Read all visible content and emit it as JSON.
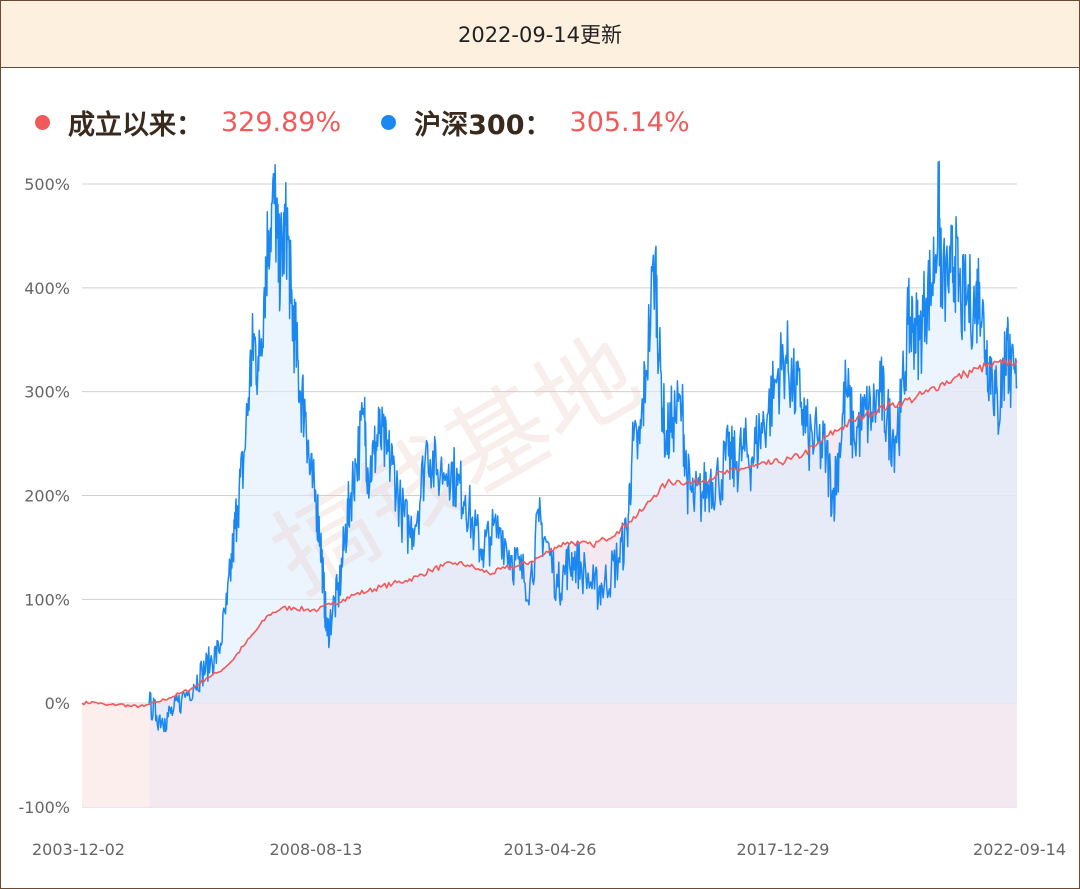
{
  "header": {
    "title": "2022-09-14更新"
  },
  "legend": [
    {
      "name": "成立以来：",
      "value": "329.89%",
      "color": "#f05a5a"
    },
    {
      "name": "沪深300：",
      "value": "305.14%",
      "color": "#1a88f0"
    }
  ],
  "watermark": "搞钱基地",
  "colors": {
    "fund": "#f05a5a",
    "index": "#1a88f0",
    "grid": "#d0d0d0"
  },
  "chart_data": {
    "type": "line",
    "x_tick_labels": [
      "2003-12-02",
      "2008-08-13",
      "2013-04-26",
      "2017-12-29",
      "2022-09-14"
    ],
    "y_tick_labels": [
      "500%",
      "400%",
      "300%",
      "200%",
      "100%",
      "0%",
      "-100%"
    ],
    "ylim": [
      -100,
      500
    ],
    "xlim": [
      "2003-12-02",
      "2022-09-14"
    ],
    "grid": true,
    "series": [
      {
        "name": "成立以来",
        "color": "#f05a5a",
        "points": [
          [
            "2003-12-02",
            0
          ],
          [
            "2004-03-01",
            1
          ],
          [
            "2004-06-01",
            -2
          ],
          [
            "2004-09-01",
            -1
          ],
          [
            "2004-12-01",
            -3
          ],
          [
            "2005-03-01",
            -3
          ],
          [
            "2005-06-01",
            1
          ],
          [
            "2005-09-01",
            5
          ],
          [
            "2005-12-01",
            10
          ],
          [
            "2006-03-01",
            15
          ],
          [
            "2006-06-01",
            24
          ],
          [
            "2006-09-01",
            30
          ],
          [
            "2006-12-01",
            40
          ],
          [
            "2007-03-01",
            55
          ],
          [
            "2007-06-01",
            70
          ],
          [
            "2007-09-01",
            85
          ],
          [
            "2007-12-01",
            91
          ],
          [
            "2008-03-01",
            92
          ],
          [
            "2008-06-01",
            90
          ],
          [
            "2008-09-01",
            90
          ],
          [
            "2008-12-01",
            95
          ],
          [
            "2009-03-01",
            100
          ],
          [
            "2009-06-01",
            105
          ],
          [
            "2009-09-01",
            108
          ],
          [
            "2009-12-01",
            112
          ],
          [
            "2010-03-01",
            115
          ],
          [
            "2010-06-01",
            118
          ],
          [
            "2010-09-01",
            122
          ],
          [
            "2010-12-01",
            128
          ],
          [
            "2011-03-01",
            132
          ],
          [
            "2011-06-01",
            135
          ],
          [
            "2011-09-01",
            133
          ],
          [
            "2011-12-01",
            128
          ],
          [
            "2012-03-01",
            125
          ],
          [
            "2012-06-01",
            130
          ],
          [
            "2012-09-01",
            132
          ],
          [
            "2012-12-01",
            136
          ],
          [
            "2013-03-01",
            142
          ],
          [
            "2013-06-01",
            150
          ],
          [
            "2013-09-01",
            155
          ],
          [
            "2013-12-01",
            154
          ],
          [
            "2014-03-01",
            152
          ],
          [
            "2014-06-01",
            158
          ],
          [
            "2014-09-01",
            165
          ],
          [
            "2014-12-01",
            175
          ],
          [
            "2015-03-01",
            185
          ],
          [
            "2015-06-01",
            200
          ],
          [
            "2015-09-01",
            212
          ],
          [
            "2015-12-01",
            214
          ],
          [
            "2016-03-01",
            212
          ],
          [
            "2016-06-01",
            215
          ],
          [
            "2016-09-01",
            220
          ],
          [
            "2016-12-01",
            222
          ],
          [
            "2017-03-01",
            226
          ],
          [
            "2017-06-01",
            228
          ],
          [
            "2017-09-01",
            230
          ],
          [
            "2017-12-01",
            232
          ],
          [
            "2018-03-01",
            235
          ],
          [
            "2018-06-01",
            240
          ],
          [
            "2018-09-01",
            248
          ],
          [
            "2018-12-01",
            258
          ],
          [
            "2019-03-01",
            265
          ],
          [
            "2019-06-01",
            272
          ],
          [
            "2019-09-01",
            278
          ],
          [
            "2019-12-01",
            283
          ],
          [
            "2020-03-01",
            287
          ],
          [
            "2020-06-01",
            290
          ],
          [
            "2020-09-01",
            294
          ],
          [
            "2020-12-01",
            300
          ],
          [
            "2021-03-01",
            307
          ],
          [
            "2021-06-01",
            312
          ],
          [
            "2021-09-01",
            317
          ],
          [
            "2021-12-01",
            322
          ],
          [
            "2022-03-01",
            325
          ],
          [
            "2022-06-01",
            327
          ],
          [
            "2022-09-14",
            329.89
          ]
        ]
      },
      {
        "name": "沪深300",
        "color": "#1a88f0",
        "start": "2005-04-08",
        "points": [
          [
            "2005-04-08",
            0
          ],
          [
            "2005-06-01",
            -12
          ],
          [
            "2005-08-01",
            -15
          ],
          [
            "2005-10-01",
            -8
          ],
          [
            "2005-12-01",
            3
          ],
          [
            "2006-03-01",
            18
          ],
          [
            "2006-05-01",
            30
          ],
          [
            "2006-07-01",
            40
          ],
          [
            "2006-09-01",
            50
          ],
          [
            "2006-11-01",
            95
          ],
          [
            "2006-12-15",
            150
          ],
          [
            "2007-01-15",
            190
          ],
          [
            "2007-03-01",
            230
          ],
          [
            "2007-04-15",
            310
          ],
          [
            "2007-05-15",
            350
          ],
          [
            "2007-06-20",
            320
          ],
          [
            "2007-08-01",
            400
          ],
          [
            "2007-09-01",
            455
          ],
          [
            "2007-10-16",
            485
          ],
          [
            "2007-11-15",
            420
          ],
          [
            "2007-12-15",
            440
          ],
          [
            "2008-01-15",
            460
          ],
          [
            "2008-02-15",
            385
          ],
          [
            "2008-03-15",
            350
          ],
          [
            "2008-04-20",
            300
          ],
          [
            "2008-06-01",
            280
          ],
          [
            "2008-07-01",
            220
          ],
          [
            "2008-08-15",
            195
          ],
          [
            "2008-09-15",
            160
          ],
          [
            "2008-10-10",
            110
          ],
          [
            "2008-11-04",
            65
          ],
          [
            "2008-12-15",
            90
          ],
          [
            "2009-02-01",
            110
          ],
          [
            "2009-03-15",
            160
          ],
          [
            "2009-04-20",
            195
          ],
          [
            "2009-06-01",
            230
          ],
          [
            "2009-08-04",
            275
          ],
          [
            "2009-09-01",
            220
          ],
          [
            "2009-10-15",
            240
          ],
          [
            "2009-11-20",
            260
          ],
          [
            "2010-01-15",
            240
          ],
          [
            "2010-03-01",
            230
          ],
          [
            "2010-05-01",
            185
          ],
          [
            "2010-07-01",
            165
          ],
          [
            "2010-09-01",
            185
          ],
          [
            "2010-11-10",
            250
          ],
          [
            "2011-01-15",
            220
          ],
          [
            "2011-04-15",
            230
          ],
          [
            "2011-06-20",
            210
          ],
          [
            "2011-08-15",
            200
          ],
          [
            "2011-10-20",
            165
          ],
          [
            "2011-12-20",
            148
          ],
          [
            "2012-02-15",
            160
          ],
          [
            "2012-05-01",
            168
          ],
          [
            "2012-07-15",
            142
          ],
          [
            "2012-09-20",
            128
          ],
          [
            "2012-12-01",
            115
          ],
          [
            "2013-02-05",
            175
          ],
          [
            "2013-04-01",
            155
          ],
          [
            "2013-06-25",
            112
          ],
          [
            "2013-08-20",
            130
          ],
          [
            "2013-10-15",
            140
          ],
          [
            "2013-12-15",
            130
          ],
          [
            "2014-03-20",
            110
          ],
          [
            "2014-05-15",
            112
          ],
          [
            "2014-07-20",
            125
          ],
          [
            "2014-09-15",
            140
          ],
          [
            "2014-11-15",
            165
          ],
          [
            "2014-12-20",
            240
          ],
          [
            "2015-02-15",
            250
          ],
          [
            "2015-04-01",
            320
          ],
          [
            "2015-06-08",
            430
          ],
          [
            "2015-07-08",
            330
          ],
          [
            "2015-08-26",
            250
          ],
          [
            "2015-10-15",
            275
          ],
          [
            "2015-12-22",
            285
          ],
          [
            "2016-01-28",
            215
          ],
          [
            "2016-03-15",
            195
          ],
          [
            "2016-05-15",
            200
          ],
          [
            "2016-07-15",
            215
          ],
          [
            "2016-09-15",
            215
          ],
          [
            "2016-11-28",
            238
          ],
          [
            "2017-01-15",
            230
          ],
          [
            "2017-03-15",
            245
          ],
          [
            "2017-05-15",
            235
          ],
          [
            "2017-07-15",
            260
          ],
          [
            "2017-09-15",
            280
          ],
          [
            "2017-11-20",
            315
          ],
          [
            "2018-01-24",
            335
          ],
          [
            "2018-03-15",
            305
          ],
          [
            "2018-05-15",
            290
          ],
          [
            "2018-07-05",
            255
          ],
          [
            "2018-09-15",
            250
          ],
          [
            "2018-11-15",
            240
          ],
          [
            "2019-01-03",
            197
          ],
          [
            "2019-02-15",
            240
          ],
          [
            "2019-04-08",
            305
          ],
          [
            "2019-06-06",
            255
          ],
          [
            "2019-08-15",
            275
          ],
          [
            "2019-10-15",
            280
          ],
          [
            "2019-12-20",
            300
          ],
          [
            "2020-02-03",
            275
          ],
          [
            "2020-03-23",
            255
          ],
          [
            "2020-05-15",
            280
          ],
          [
            "2020-07-09",
            365
          ],
          [
            "2020-08-15",
            365
          ],
          [
            "2020-09-28",
            350
          ],
          [
            "2020-11-15",
            390
          ],
          [
            "2020-12-31",
            405
          ],
          [
            "2021-02-18",
            478
          ],
          [
            "2021-03-09",
            400
          ],
          [
            "2021-05-15",
            415
          ],
          [
            "2021-06-15",
            430
          ],
          [
            "2021-07-28",
            385
          ],
          [
            "2021-09-15",
            390
          ],
          [
            "2021-11-15",
            382
          ],
          [
            "2021-12-13",
            405
          ],
          [
            "2022-01-28",
            340
          ],
          [
            "2022-03-15",
            320
          ],
          [
            "2022-04-26",
            280
          ],
          [
            "2022-06-06",
            320
          ],
          [
            "2022-07-05",
            350
          ],
          [
            "2022-08-01",
            310
          ],
          [
            "2022-09-14",
            305.14
          ]
        ]
      }
    ]
  }
}
